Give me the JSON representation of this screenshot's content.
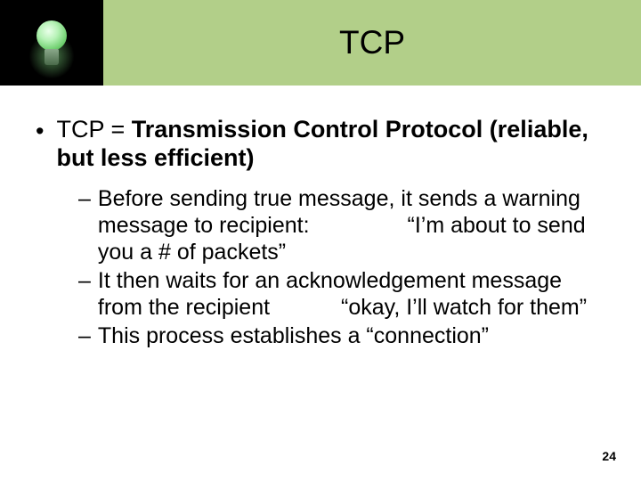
{
  "header": {
    "title": "TCP",
    "band_color": "#b2cf89",
    "logo_bg": "#000000"
  },
  "bullet": {
    "lead": "TCP = ",
    "bold": "Transmission Control Protocol (reliable, but less efficient)"
  },
  "subs": [
    {
      "pre": "Before sending true message, it sends a warning message to recipient:",
      "quote": "“I’m about to send you a # of packets”",
      "gap_class": "quote-gap"
    },
    {
      "pre": "It then waits for an acknowledgement message from the recipient",
      "quote": "“okay, I’ll watch for them”",
      "gap_class": "quote-gap2"
    },
    {
      "pre": "This process establishes a “connection”",
      "quote": "",
      "gap_class": ""
    }
  ],
  "page_number": "24",
  "style": {
    "title_fontsize": 37,
    "bullet_fontsize": 27,
    "sub_fontsize": 25,
    "pagenum_fontsize": 14
  }
}
